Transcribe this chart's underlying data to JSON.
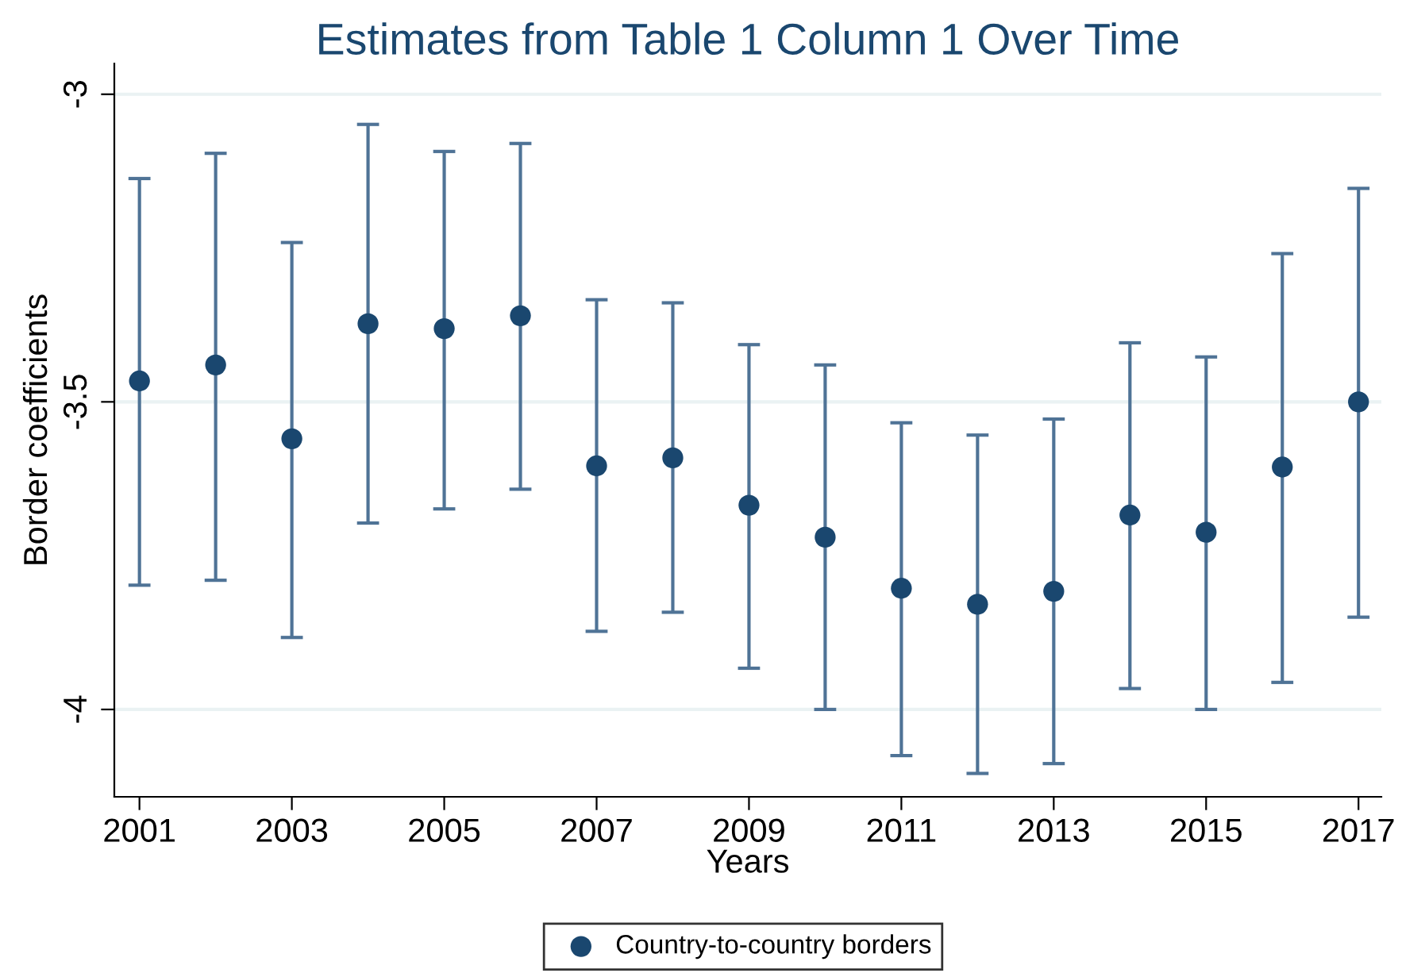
{
  "chart_data": {
    "type": "scatter",
    "title": "Estimates from Table 1 Column 1 Over Time",
    "xlabel": "Years",
    "ylabel": "Border coefficients",
    "x": [
      2001,
      2002,
      2003,
      2004,
      2005,
      2006,
      2007,
      2008,
      2009,
      2010,
      2011,
      2012,
      2013,
      2014,
      2015,
      2016,
      2017
    ],
    "series": [
      {
        "name": "Country-to-country borders",
        "color": "#1a476f",
        "values": [
          -3.466,
          -3.44,
          -3.56,
          -3.373,
          -3.381,
          -3.36,
          -3.604,
          -3.591,
          -3.668,
          -3.72,
          -3.803,
          -3.829,
          -3.808,
          -3.684,
          -3.712,
          -3.606,
          -3.5
        ],
        "errors": [
          [
            -3.798,
            -3.137
          ],
          [
            -3.79,
            -3.096
          ],
          [
            -3.883,
            -3.241
          ],
          [
            -3.697,
            -3.049
          ],
          [
            -3.674,
            -3.093
          ],
          [
            -3.642,
            -3.08
          ],
          [
            -3.873,
            -3.334
          ],
          [
            -3.842,
            -3.339
          ],
          [
            -3.933,
            -3.407
          ],
          [
            -4.0,
            -3.44
          ],
          [
            -4.075,
            -3.534
          ],
          [
            -4.104,
            -3.554
          ],
          [
            -4.088,
            -3.528
          ],
          [
            -3.966,
            -3.404
          ],
          [
            -4.0,
            -3.427
          ],
          [
            -3.956,
            -3.259
          ],
          [
            -3.85,
            -3.153
          ]
        ]
      }
    ],
    "xlim": [
      2000.67,
      2017.3
    ],
    "xticks": [
      2001,
      2003,
      2005,
      2007,
      2009,
      2011,
      2013,
      2015,
      2017
    ],
    "ylim": [
      -4.142,
      -2.95
    ],
    "yticks": [
      -4,
      -3.5,
      -3
    ],
    "grid": "y",
    "legend": "bottom",
    "marker": "circle"
  }
}
